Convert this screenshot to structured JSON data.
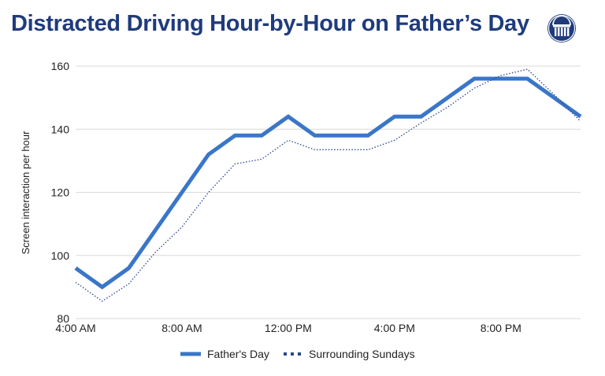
{
  "chart_data": {
    "type": "line",
    "title": "Distracted Driving Hour-by-Hour on Father’s Day",
    "xlabel": "",
    "ylabel": "Screen interaction per hour",
    "x_hours": [
      4,
      5,
      6,
      7,
      8,
      9,
      10,
      11,
      12,
      13,
      14,
      15,
      16,
      17,
      18,
      19,
      20,
      21,
      22,
      23
    ],
    "x_tick_labels": [
      {
        "hour": 4,
        "label": "4:00 AM"
      },
      {
        "hour": 8,
        "label": "8:00 AM"
      },
      {
        "hour": 12,
        "label": "12:00 PM"
      },
      {
        "hour": 16,
        "label": "4:00 PM"
      },
      {
        "hour": 20,
        "label": "8:00 PM"
      }
    ],
    "y_ticks": [
      80,
      100,
      120,
      140,
      160
    ],
    "ylim": [
      80,
      160
    ],
    "xlim": [
      4,
      23
    ],
    "grid": true,
    "legend_position": "bottom",
    "series": [
      {
        "name": "Father's Day",
        "style": "solid",
        "color": "#3a76c8",
        "values": [
          96,
          90,
          96,
          108,
          120,
          132,
          138,
          138,
          144,
          138,
          138,
          138,
          144,
          144,
          150,
          156,
          156,
          156,
          150,
          144
        ]
      },
      {
        "name": "Surrounding Sundays",
        "style": "dotted",
        "color": "#2a4690",
        "values": [
          91.5,
          85.5,
          91,
          101,
          109,
          120,
          129,
          130.5,
          136.5,
          133.5,
          133.5,
          133.5,
          136.5,
          142,
          147,
          153,
          157,
          159,
          151,
          142.5
        ]
      }
    ]
  },
  "colors": {
    "title": "#1f3b7c",
    "logo": "#1f3b7c",
    "grid": "#d9d9d9"
  }
}
